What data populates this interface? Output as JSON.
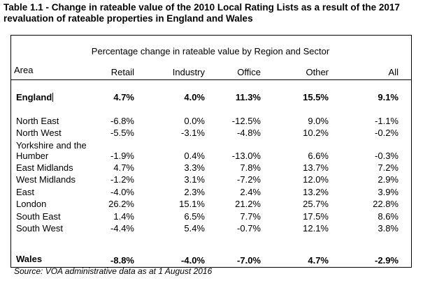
{
  "title_line1": "Table 1.1 - Change in rateable value of the 2010 Local Rating Lists as a result of the 2017",
  "title_line2": "revaluation of rateable properties in England and Wales",
  "subtitle": "Percentage change in rateable value by Region and Sector",
  "headers": {
    "area": "Area",
    "retail": "Retail",
    "industry": "Industry",
    "office": "Office",
    "other": "Other",
    "all": "All"
  },
  "england": {
    "area": "England",
    "retail": "4.7%",
    "industry": "4.0%",
    "office": "11.3%",
    "other": "15.5%",
    "all": "9.1%"
  },
  "regions": [
    {
      "area": "North East",
      "retail": "-6.8%",
      "industry": "0.0%",
      "office": "-12.5%",
      "other": "9.0%",
      "all": "-1.1%"
    },
    {
      "area": "North West",
      "retail": "-5.5%",
      "industry": "-3.1%",
      "office": "-4.8%",
      "other": "10.2%",
      "all": "-0.2%"
    },
    {
      "area_line1": "Yorkshire and the",
      "area_line2": "Humber",
      "retail": "-1.9%",
      "industry": "0.4%",
      "office": "-13.0%",
      "other": "6.6%",
      "all": "-0.3%"
    },
    {
      "area": "East Midlands",
      "retail": "4.7%",
      "industry": "3.3%",
      "office": "7.8%",
      "other": "13.7%",
      "all": "7.2%"
    },
    {
      "area": "West Midlands",
      "retail": "-1.2%",
      "industry": "3.1%",
      "office": "-7.2%",
      "other": "12.0%",
      "all": "2.9%"
    },
    {
      "area": "East",
      "retail": "-4.0%",
      "industry": "2.3%",
      "office": "2.4%",
      "other": "13.2%",
      "all": "3.9%"
    },
    {
      "area": "London",
      "retail": "26.2%",
      "industry": "15.1%",
      "office": "21.2%",
      "other": "25.7%",
      "all": "22.8%"
    },
    {
      "area": "South East",
      "retail": "1.4%",
      "industry": "6.5%",
      "office": "7.7%",
      "other": "17.5%",
      "all": "8.6%"
    },
    {
      "area": "South West",
      "retail": "-4.4%",
      "industry": "5.4%",
      "office": "-0.7%",
      "other": "12.1%",
      "all": "3.8%"
    }
  ],
  "wales": {
    "area": "Wales",
    "retail": "-8.8%",
    "industry": "-4.0%",
    "office": "-7.0%",
    "other": "4.7%",
    "all": "-2.9%"
  },
  "source": "Source: VOA administrative data as at 1 August 2016"
}
